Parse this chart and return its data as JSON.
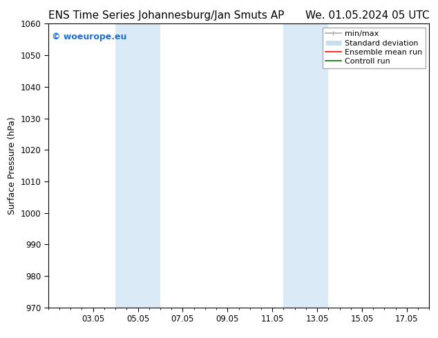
{
  "title_left": "ENS Time Series Johannesburg/Jan Smuts AP",
  "title_right": "We. 01.05.2024 05 UTC",
  "ylabel": "Surface Pressure (hPa)",
  "ylim": [
    970,
    1060
  ],
  "yticks": [
    970,
    980,
    990,
    1000,
    1010,
    1020,
    1030,
    1040,
    1050,
    1060
  ],
  "xlim": [
    1.0,
    18.0
  ],
  "xtick_labels": [
    "03.05",
    "05.05",
    "07.05",
    "09.05",
    "11.05",
    "13.05",
    "15.05",
    "17.05"
  ],
  "xtick_positions": [
    3,
    5,
    7,
    9,
    11,
    13,
    15,
    17
  ],
  "shaded_bands": [
    {
      "xmin": 4.0,
      "xmax": 6.0
    },
    {
      "xmin": 11.5,
      "xmax": 13.5
    }
  ],
  "shaded_color": "#daeaf6",
  "background_color": "#ffffff",
  "watermark_text": "© woeurope.eu",
  "watermark_color": "#1e6fcc",
  "legend_items": [
    {
      "label": "min/max",
      "color": "#aaaaaa",
      "lw": 1.2
    },
    {
      "label": "Standard deviation",
      "color": "#c8dff0",
      "lw": 5
    },
    {
      "label": "Ensemble mean run",
      "color": "#ff0000",
      "lw": 1.2
    },
    {
      "label": "Controll run",
      "color": "#007700",
      "lw": 1.2
    }
  ],
  "title_fontsize": 11,
  "tick_fontsize": 8.5,
  "ylabel_fontsize": 9,
  "legend_fontsize": 8,
  "watermark_fontsize": 9
}
